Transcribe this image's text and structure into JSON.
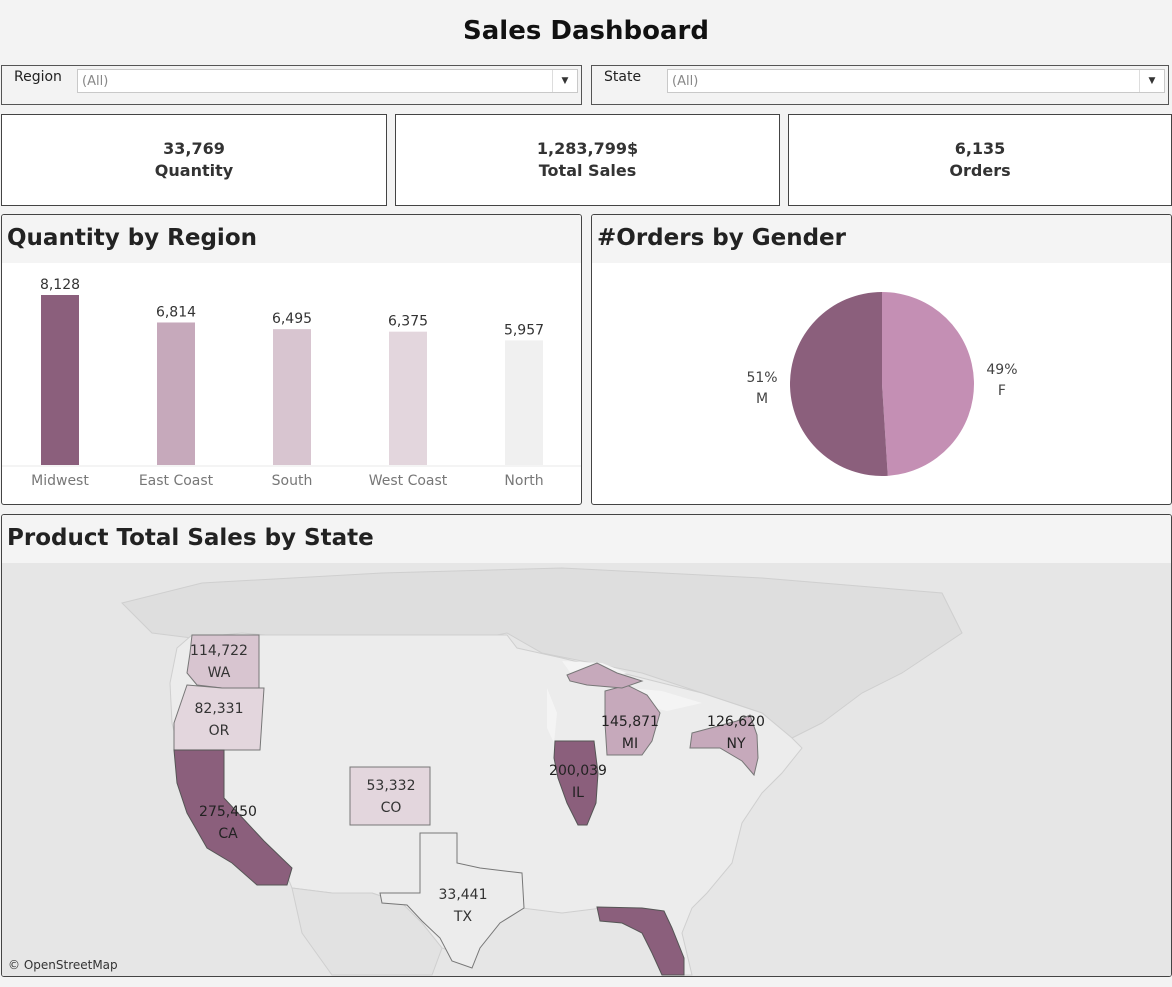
{
  "dashboard": {
    "title": "Sales Dashboard"
  },
  "filters": [
    {
      "label": "Region",
      "value": "(All)"
    },
    {
      "label": "State",
      "value": "(All)"
    }
  ],
  "kpis": [
    {
      "value": "33,769",
      "label": "Quantity"
    },
    {
      "value": "1,283,799$",
      "label": "Total Sales"
    },
    {
      "value": "6,135",
      "label": "Orders"
    }
  ],
  "colors": {
    "darkest": "#8b5f7c",
    "dark": "#a57a95",
    "mid": "#c6a9bb",
    "light": "#d8c5d0",
    "lighter": "#e3d6dd",
    "lightest": "#f0f0f0",
    "pie_f": "#c48fb4"
  },
  "panels": {
    "region_title": "Quantity by Region",
    "gender_title": "#Orders by Gender",
    "map_title": "Product Total Sales by State",
    "map_attribution": "© OpenStreetMap"
  },
  "chart_data": [
    {
      "type": "bar",
      "title": "Quantity by Region",
      "categories": [
        "Midwest",
        "East Coast",
        "South",
        "West Coast",
        "North"
      ],
      "values": [
        8128,
        6814,
        6495,
        6375,
        5957
      ],
      "value_labels": [
        "8,128",
        "6,814",
        "6,495",
        "6,375",
        "5,957"
      ],
      "ylim": [
        0,
        8128
      ]
    },
    {
      "type": "pie",
      "title": "#Orders by Gender",
      "slices": [
        {
          "label": "F",
          "percent": 49,
          "percent_label": "49%"
        },
        {
          "label": "M",
          "percent": 51,
          "percent_label": "51%"
        }
      ]
    }
  ],
  "map": {
    "states": [
      {
        "code": "WA",
        "value": "114,722"
      },
      {
        "code": "OR",
        "value": "82,331"
      },
      {
        "code": "CA",
        "value": "275,450"
      },
      {
        "code": "CO",
        "value": "53,332"
      },
      {
        "code": "TX",
        "value": "33,441"
      },
      {
        "code": "IL",
        "value": "200,039"
      },
      {
        "code": "MI",
        "value": "145,871"
      },
      {
        "code": "NY",
        "value": "126,620"
      },
      {
        "code": "FL",
        "value": ""
      }
    ]
  }
}
